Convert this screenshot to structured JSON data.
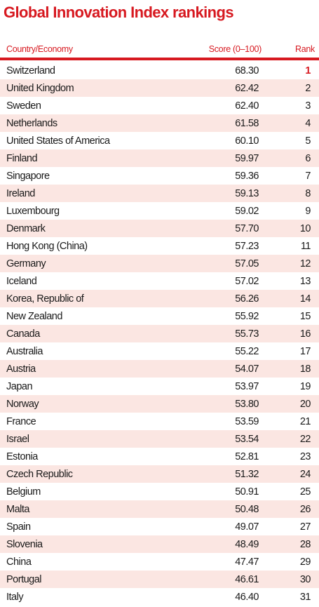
{
  "title": "Global Innovation Index rankings",
  "columns": {
    "country": "Country/Economy",
    "score": "Score (0–100)",
    "rank": "Rank"
  },
  "colors": {
    "accent": "#d71920",
    "row_shade": "#fbe6e2"
  },
  "rows": [
    {
      "country": "Switzerland",
      "score": "68.30",
      "rank": "1"
    },
    {
      "country": "United Kingdom",
      "score": "62.42",
      "rank": "2"
    },
    {
      "country": "Sweden",
      "score": "62.40",
      "rank": "3"
    },
    {
      "country": "Netherlands",
      "score": "61.58",
      "rank": "4"
    },
    {
      "country": "United States of America",
      "score": "60.10",
      "rank": "5"
    },
    {
      "country": "Finland",
      "score": "59.97",
      "rank": "6"
    },
    {
      "country": "Singapore",
      "score": "59.36",
      "rank": "7"
    },
    {
      "country": "Ireland",
      "score": "59.13",
      "rank": "8"
    },
    {
      "country": "Luxembourg",
      "score": "59.02",
      "rank": "9"
    },
    {
      "country": "Denmark",
      "score": "57.70",
      "rank": "10"
    },
    {
      "country": "Hong Kong (China)",
      "score": "57.23",
      "rank": "11"
    },
    {
      "country": "Germany",
      "score": "57.05",
      "rank": "12"
    },
    {
      "country": "Iceland",
      "score": "57.02",
      "rank": "13"
    },
    {
      "country": "Korea, Republic of",
      "score": "56.26",
      "rank": "14"
    },
    {
      "country": "New Zealand",
      "score": "55.92",
      "rank": "15"
    },
    {
      "country": "Canada",
      "score": "55.73",
      "rank": "16"
    },
    {
      "country": "Australia",
      "score": "55.22",
      "rank": "17"
    },
    {
      "country": "Austria",
      "score": "54.07",
      "rank": "18"
    },
    {
      "country": "Japan",
      "score": "53.97",
      "rank": "19"
    },
    {
      "country": "Norway",
      "score": "53.80",
      "rank": "20"
    },
    {
      "country": "France",
      "score": "53.59",
      "rank": "21"
    },
    {
      "country": "Israel",
      "score": "53.54",
      "rank": "22"
    },
    {
      "country": "Estonia",
      "score": "52.81",
      "rank": "23"
    },
    {
      "country": "Czech Republic",
      "score": "51.32",
      "rank": "24"
    },
    {
      "country": "Belgium",
      "score": "50.91",
      "rank": "25"
    },
    {
      "country": "Malta",
      "score": "50.48",
      "rank": "26"
    },
    {
      "country": "Spain",
      "score": "49.07",
      "rank": "27"
    },
    {
      "country": "Slovenia",
      "score": "48.49",
      "rank": "28"
    },
    {
      "country": "China",
      "score": "47.47",
      "rank": "29"
    },
    {
      "country": "Portugal",
      "score": "46.61",
      "rank": "30"
    },
    {
      "country": "Italy",
      "score": "46.40",
      "rank": "31"
    }
  ]
}
